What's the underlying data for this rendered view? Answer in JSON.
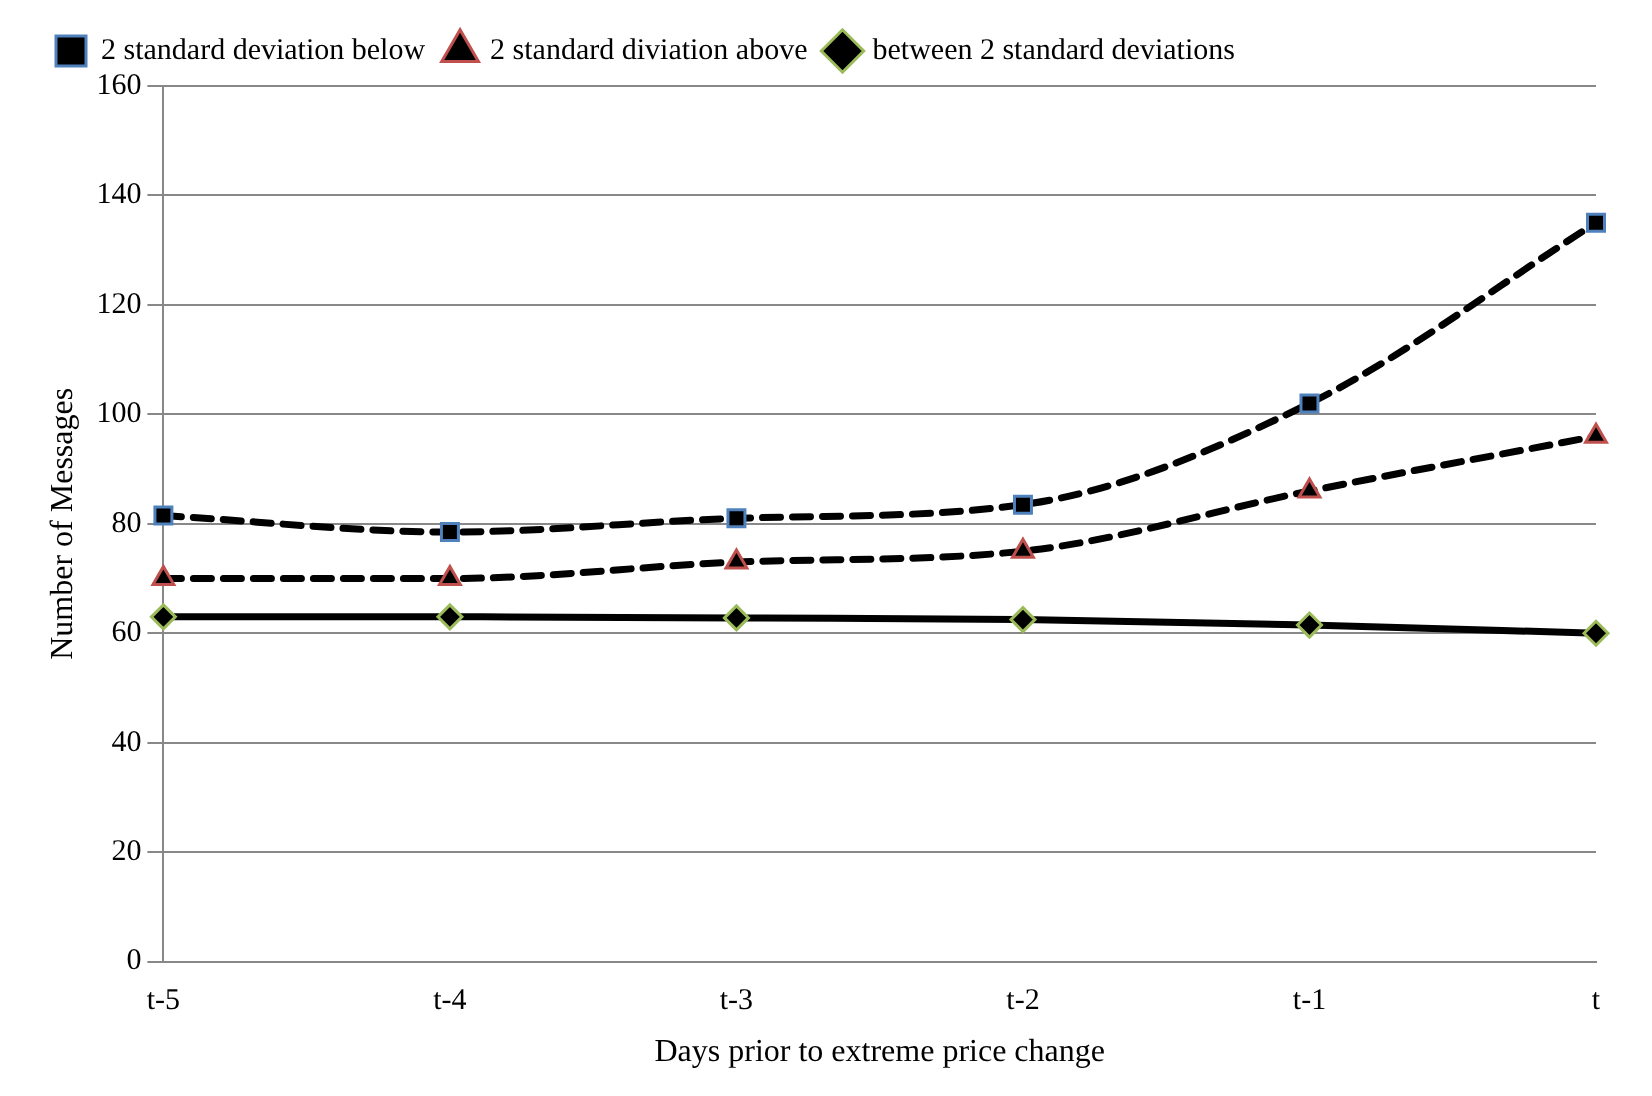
{
  "chart_data": {
    "type": "line",
    "xlabel": "Days prior to extreme price change",
    "ylabel": "Number of Messages",
    "categories": [
      "t-5",
      "t-4",
      "t-3",
      "t-2",
      "t-1",
      "t"
    ],
    "series": [
      {
        "name": "2 standard deviation below",
        "color": "#000000",
        "marker": "square",
        "line_style": "dashed",
        "values": [
          81.5,
          78.5,
          81,
          83.5,
          102,
          135
        ]
      },
      {
        "name": "2 standard diviation above",
        "color": "#000000",
        "marker": "triangle",
        "line_style": "dashed",
        "values": [
          70,
          70,
          73,
          75,
          86,
          96
        ]
      },
      {
        "name": "between 2 standard deviations",
        "color": "#000000",
        "marker": "diamond",
        "line_style": "solid",
        "values": [
          63,
          63,
          62.8,
          62.5,
          61.5,
          60
        ]
      }
    ],
    "ylim": [
      0,
      160
    ],
    "yticks": [
      0,
      20,
      40,
      60,
      80,
      100,
      120,
      140,
      160
    ],
    "grid": "y",
    "legend": "top left"
  }
}
